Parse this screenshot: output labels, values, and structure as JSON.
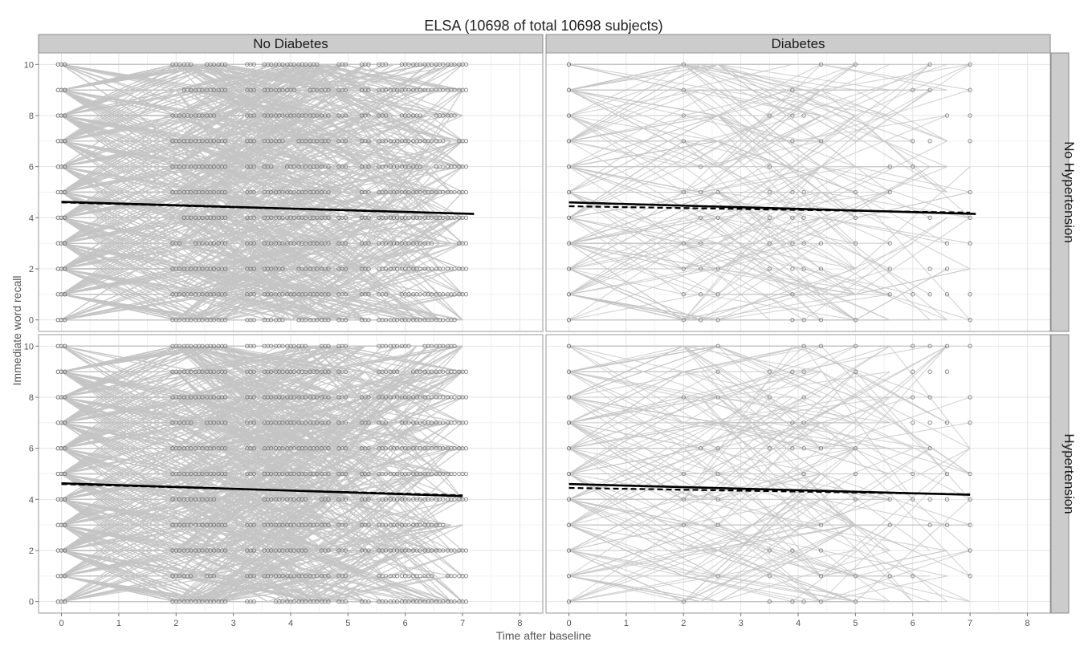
{
  "chart_data": {
    "type": "scatter",
    "title": "ELSA (10698 of total 10698 subjects)",
    "xlabel": "Time after baseline",
    "ylabel": "Immediate word recall",
    "xlim": [
      -0.4,
      8.4
    ],
    "ylim": [
      -0.45,
      10.45
    ],
    "x_ticks": [
      0,
      1,
      2,
      3,
      4,
      5,
      6,
      7,
      8
    ],
    "y_ticks": [
      0,
      2,
      4,
      6,
      8,
      10
    ],
    "grid": true,
    "col_facets": [
      "No Diabetes",
      "Diabetes"
    ],
    "row_facets": [
      "No Hypertension",
      "Hypertension"
    ],
    "mark_colors": {
      "trajectory": "#c4c4c4",
      "point": "#6f6f6f",
      "fit": "#000000"
    },
    "panels": [
      {
        "col": "No Diabetes",
        "row": "No Hypertension",
        "density": "high",
        "observation_times": [
          0,
          2.0,
          2.2,
          2.4,
          2.6,
          2.8,
          3.3,
          3.6,
          3.8,
          4.0,
          4.2,
          4.4,
          4.6,
          4.9,
          5.3,
          5.6,
          5.8,
          6.0,
          6.2,
          6.4,
          6.6,
          6.8,
          7.0
        ],
        "fit_solid": {
          "x": [
            0,
            7.2
          ],
          "y": [
            4.62,
            4.15
          ]
        },
        "fit_dashed": {
          "x": [
            0,
            7.0
          ],
          "y": [
            4.6,
            4.16
          ]
        }
      },
      {
        "col": "Diabetes",
        "row": "No Hypertension",
        "density": "low",
        "observation_times": [
          0,
          2.0,
          2.3,
          2.6,
          3.5,
          3.9,
          4.1,
          4.4,
          5.0,
          5.6,
          6.0,
          6.3,
          6.6,
          7.0
        ],
        "fit_solid": {
          "x": [
            0,
            7.1
          ],
          "y": [
            4.6,
            4.15
          ]
        },
        "fit_dashed": {
          "x": [
            0,
            7.0
          ],
          "y": [
            4.45,
            4.2
          ]
        }
      },
      {
        "col": "No Diabetes",
        "row": "Hypertension",
        "density": "high",
        "observation_times": [
          0,
          2.0,
          2.2,
          2.4,
          2.6,
          2.8,
          3.3,
          3.6,
          3.8,
          4.0,
          4.2,
          4.4,
          4.6,
          4.9,
          5.3,
          5.6,
          5.8,
          6.0,
          6.2,
          6.4,
          6.6,
          6.8,
          7.0
        ],
        "fit_solid": {
          "x": [
            0,
            7.0
          ],
          "y": [
            4.63,
            4.13
          ]
        },
        "fit_dashed": {
          "x": [
            0,
            7.0
          ],
          "y": [
            4.6,
            4.16
          ]
        }
      },
      {
        "col": "Diabetes",
        "row": "Hypertension",
        "density": "low",
        "observation_times": [
          0,
          2.0,
          2.3,
          2.6,
          3.5,
          3.9,
          4.1,
          4.4,
          5.0,
          5.6,
          6.0,
          6.3,
          6.6,
          7.0
        ],
        "fit_solid": {
          "x": [
            0,
            7.0
          ],
          "y": [
            4.6,
            4.18
          ]
        },
        "fit_dashed": {
          "x": [
            0,
            7.0
          ],
          "y": [
            4.45,
            4.2
          ]
        }
      }
    ]
  }
}
